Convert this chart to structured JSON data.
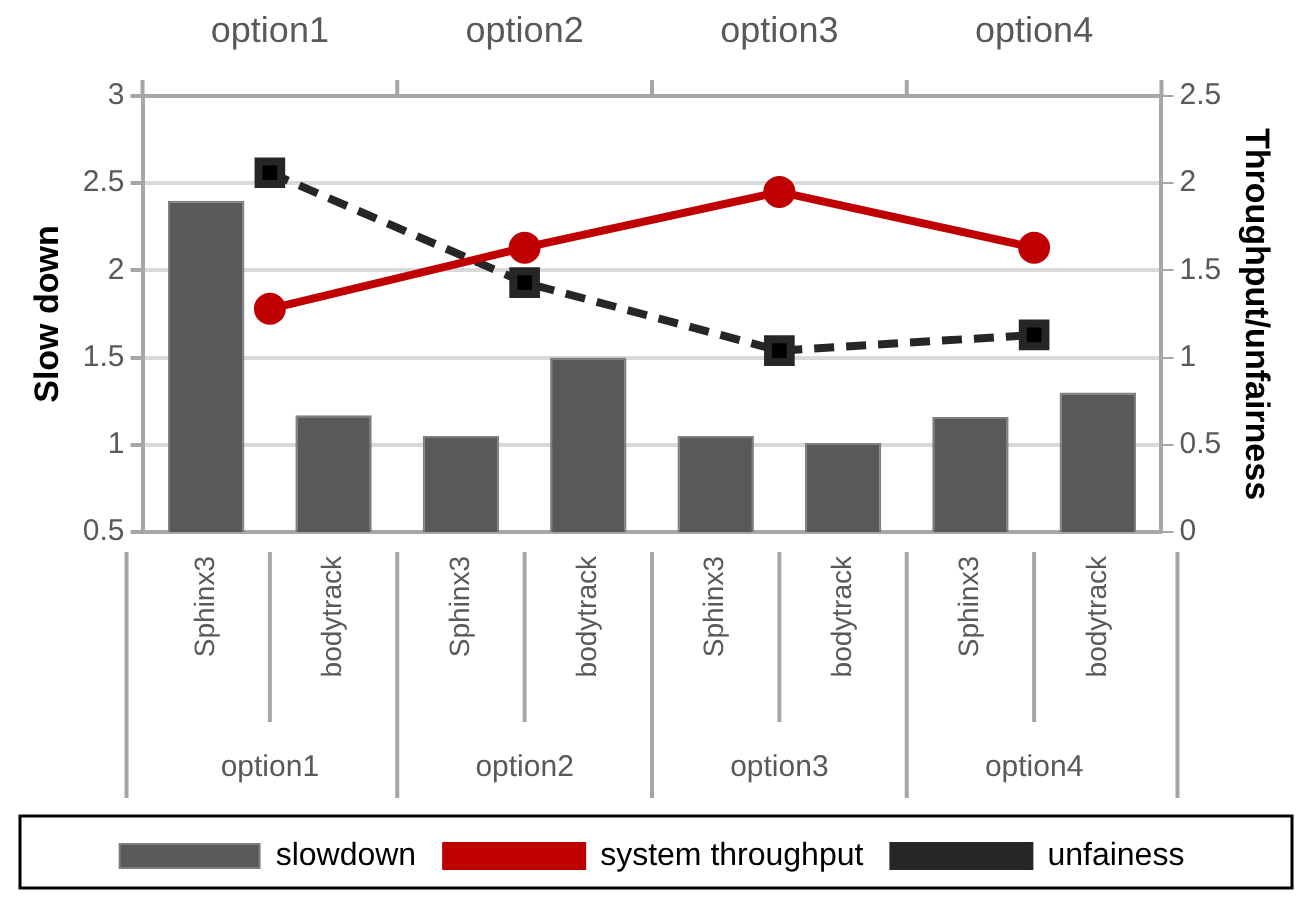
{
  "chart_data": {
    "type": "bar",
    "ylabel": "Slow down",
    "y2label": "Throughput/unfairness",
    "legend_title": "slowdown",
    "categories": [
      "option1",
      "option2",
      "option3",
      "option4"
    ],
    "series": [
      {
        "name": "Sphinx3",
        "color": "#595959",
        "values": [
          2.4,
          1.05,
          1.05,
          1.16
        ]
      },
      {
        "name": "bodytrack",
        "color": "#595959",
        "values": [
          1.17,
          1.5,
          1.01,
          1.3
        ]
      },
      {
        "name": "system throughput",
        "type": "line",
        "axis": "y2",
        "color": "#c00000",
        "marker": "circle",
        "line_style": "solid",
        "values": [
          1.28,
          1.63,
          1.95,
          1.63
        ]
      },
      {
        "name": "unfainess",
        "type": "line",
        "axis": "y2",
        "color": "#262626",
        "marker": "square",
        "line_style": "dashed",
        "values": [
          2.06,
          1.43,
          1.04,
          1.13
        ]
      }
    ],
    "ylim": [
      0.5,
      3
    ],
    "yticks": [
      0.5,
      1,
      1.5,
      2,
      2.5,
      3
    ],
    "y2lim": [
      0,
      2.5
    ],
    "y2ticks": [
      0,
      0.5,
      1,
      1.5,
      2,
      2.5
    ],
    "grid": "y",
    "legend": "bottom"
  }
}
